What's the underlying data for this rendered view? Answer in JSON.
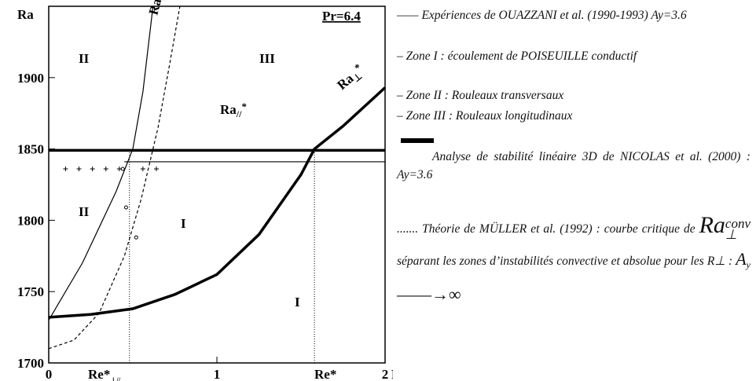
{
  "chart_data": {
    "type": "line",
    "y_label": "Ra",
    "x_label": "Re",
    "annotation_pr": "Pr=6.4",
    "xlim": [
      0,
      2
    ],
    "ylim": [
      1700,
      1950
    ],
    "xticks": [
      0,
      1,
      2
    ],
    "yticks": [
      1700,
      1750,
      1800,
      1850,
      1900
    ],
    "zones": [
      "II",
      "III",
      "II",
      "I",
      "I"
    ],
    "curve_labels": [
      {
        "main": "Ra",
        "sub": "⊥",
        "sup": "conv"
      },
      {
        "main": "Ra",
        "sub": "//",
        "sup": "*"
      },
      {
        "main": "Ra",
        "sub": "⊥",
        "sup": "*"
      }
    ],
    "vlines": [
      {
        "x": 0.48,
        "label": "Re*",
        "sub": "⊥//"
      },
      {
        "x": 1.58,
        "label": "Re*",
        "sub": ""
      }
    ],
    "series": [
      {
        "name": "Ra⊥*",
        "color": "#000",
        "style": "thick",
        "x": [
          0,
          0.25,
          0.5,
          0.75,
          1,
          1.25,
          1.5,
          1.58,
          1.75,
          2
        ],
        "values": [
          1732,
          1734,
          1738,
          1748,
          1762,
          1790,
          1832,
          1850,
          1866,
          1893
        ]
      },
      {
        "name": "Ra//*",
        "color": "#000",
        "style": "thick",
        "x": [
          0,
          2
        ],
        "values": [
          1849,
          1849
        ]
      },
      {
        "color": "#000",
        "style": "thin",
        "x": [
          0.45,
          2
        ],
        "values": [
          1841,
          1841
        ]
      },
      {
        "color": "#000",
        "style": "thin",
        "x": [
          0,
          0.2,
          0.4,
          0.5,
          0.56,
          0.62
        ],
        "values": [
          1730,
          1770,
          1820,
          1850,
          1890,
          1950
        ]
      },
      {
        "name": "Ra⊥conv",
        "color": "#000",
        "style": "dashed",
        "x": [
          0,
          0.15,
          0.3,
          0.45,
          0.55,
          0.65,
          0.72,
          0.78
        ],
        "values": [
          1710,
          1716,
          1735,
          1775,
          1815,
          1865,
          1910,
          1950
        ]
      },
      {
        "color": "#000",
        "style": "plus",
        "x": [
          0.1,
          0.18,
          0.26,
          0.34,
          0.42,
          0.56,
          0.64
        ],
        "values": [
          1836,
          1836,
          1836,
          1836,
          1836,
          1836,
          1836
        ]
      },
      {
        "color": "#000",
        "style": "circle",
        "x": [
          0.44,
          0.46,
          0.52
        ],
        "values": [
          1836,
          1809,
          1788
        ]
      }
    ]
  },
  "legend": [
    "—— Expériences de OUAZZANI et al. (1990-1993) Ay=3.6",
    "– Zone I : écoulement de POISEUILLE conductif",
    "– Zone II : Rouleaux transversaux",
    "– Zone III : Rouleaux longitudinaux",
    "Analyse de stabilité linéaire 3D de NICOLAS et al. (2000) : Ay=3.6"
  ],
  "legend_muller": {
    "text": "....... Théorie de MÜLLER et al. (1992) : courbe critique de",
    "ra": "Ra",
    "sub": "⊥",
    "sup": "conv",
    "rest": "séparant les zones d’instabilités convective et absolue pour les R⊥ :",
    "a": "A",
    "ay": "y",
    "arrow": "——→∞"
  }
}
